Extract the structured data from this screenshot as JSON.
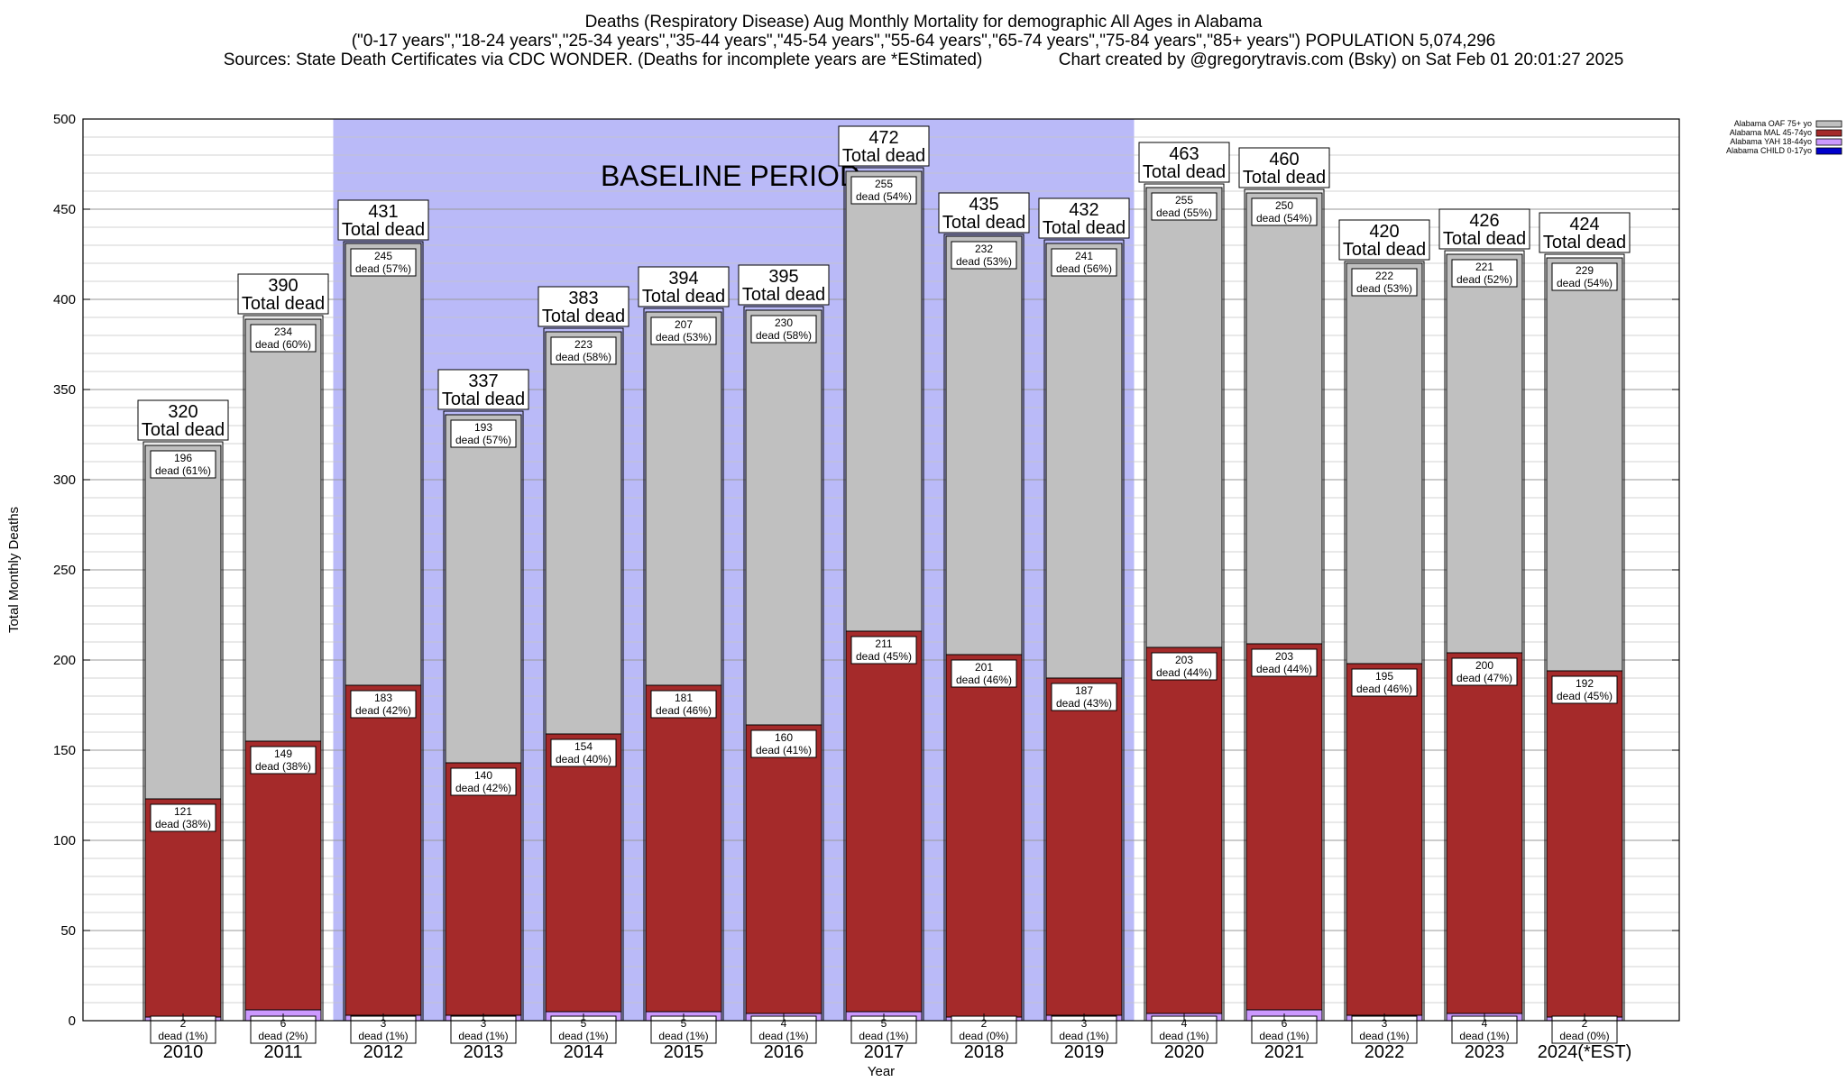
{
  "header": {
    "line1": "Deaths (Respiratory Disease) Aug Monthly Mortality for demographic All Ages in Alabama",
    "line2": "(\"0-17 years\",\"18-24 years\",\"25-34 years\",\"35-44 years\",\"45-54 years\",\"55-64 years\",\"65-74 years\",\"75-84 years\",\"85+ years\") POPULATION 5,074,296",
    "line3": "Sources: State Death Certificates via CDC WONDER. (Deaths for incomplete years are *EStimated)                Chart created by @gregorytravis.com (Bsky) on Sat Feb 01 20:01:27 2025"
  },
  "chart_data": {
    "type": "bar",
    "stacked": true,
    "xlabel": "Year",
    "ylabel": "Total Monthly Deaths",
    "ylim": [
      0,
      500
    ],
    "yticks": [
      0,
      50,
      100,
      150,
      200,
      250,
      300,
      350,
      400,
      450,
      500
    ],
    "grid": true,
    "legend_position": "top-right",
    "baseline_label": "BASELINE PERIOD",
    "baseline_categories": [
      "2012",
      "2013",
      "2014",
      "2015",
      "2016",
      "2017",
      "2018",
      "2019"
    ],
    "total_label_text": "Total dead",
    "segment_label_text": "dead",
    "categories": [
      "2010",
      "2011",
      "2012",
      "2013",
      "2014",
      "2015",
      "2016",
      "2017",
      "2018",
      "2019",
      "2020",
      "2021",
      "2022",
      "2023",
      "2024(*EST)"
    ],
    "totals": [
      320,
      390,
      431,
      337,
      383,
      394,
      395,
      472,
      435,
      432,
      463,
      460,
      420,
      426,
      424
    ],
    "series": [
      {
        "name": "Alabama CHILD 0-17yo",
        "color": "#0000cc",
        "values": [
          0,
          0,
          0,
          0,
          0,
          0,
          0,
          0,
          0,
          0,
          0,
          0,
          0,
          0,
          0
        ],
        "labels": [
          "",
          "",
          "",
          "",
          "",
          "",
          "",
          "",
          "",
          "",
          "",
          "",
          "",
          "",
          ""
        ]
      },
      {
        "name": "Alabama YAH 18-44yo",
        "color": "#cc99ff",
        "values": [
          2,
          6,
          3,
          3,
          5,
          5,
          4,
          5,
          2,
          3,
          4,
          6,
          3,
          4,
          2
        ],
        "labels": [
          "(1%)",
          "(2%)",
          "(1%)",
          "(1%)",
          "(1%)",
          "(1%)",
          "(1%)",
          "(1%)",
          "(0%)",
          "(1%)",
          "(1%)",
          "(1%)",
          "(1%)",
          "(1%)",
          "(0%)"
        ]
      },
      {
        "name": "Alabama MAL 45-74yo",
        "color": "#a52a2a",
        "values": [
          121,
          149,
          183,
          140,
          154,
          181,
          160,
          211,
          201,
          187,
          203,
          203,
          195,
          200,
          192
        ],
        "labels": [
          "(38%)",
          "(38%)",
          "(42%)",
          "(42%)",
          "(40%)",
          "(46%)",
          "(41%)",
          "(45%)",
          "(46%)",
          "(43%)",
          "(44%)",
          "(44%)",
          "(46%)",
          "(47%)",
          "(45%)"
        ]
      },
      {
        "name": "Alabama OAF 75+ yo",
        "color": "#c0c0c0",
        "values": [
          196,
          234,
          245,
          193,
          223,
          207,
          230,
          255,
          232,
          241,
          255,
          250,
          222,
          221,
          229
        ],
        "labels": [
          "(61%)",
          "(60%)",
          "(57%)",
          "(57%)",
          "(58%)",
          "(53%)",
          "(58%)",
          "(54%)",
          "(53%)",
          "(56%)",
          "(55%)",
          "(54%)",
          "(53%)",
          "(52%)",
          "(54%)"
        ]
      }
    ]
  }
}
